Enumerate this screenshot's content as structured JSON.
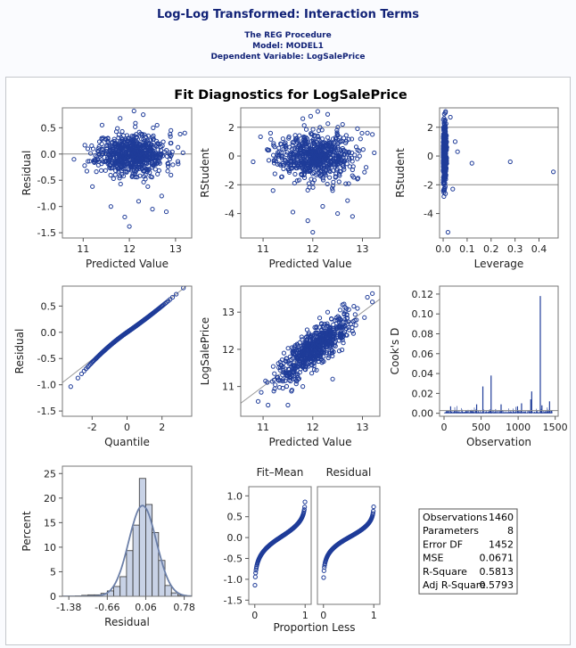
{
  "header": {
    "title": "Log-Log Transformed: Interaction Terms",
    "procedure": "The REG Procedure",
    "model": "Model: MODEL1",
    "dependent": "Dependent Variable: LogSalePrice"
  },
  "colors": {
    "marker": "#1f3c99",
    "hist_fill": "#c8d2e6",
    "curve": "#6b7fa8",
    "ref_line": "#888888"
  },
  "chart_data": [
    {
      "id": "p1",
      "type": "scatter",
      "title": "Fit Diagnostics for LogSalePrice",
      "xlabel": "Predicted Value",
      "ylabel": "Residual",
      "xlim": [
        10.55,
        13.35
      ],
      "ylim": [
        -1.6,
        0.88
      ],
      "xticks": [
        11,
        12,
        13
      ],
      "yticks": [
        -1.5,
        -1.0,
        -0.5,
        0.0,
        0.5
      ],
      "ytick_labels": [
        "-1.5",
        "-1.0",
        "-0.5",
        "0.0",
        "0.5"
      ],
      "hlines": [
        0
      ],
      "points": [
        [
          12.1,
          0.82
        ],
        [
          12.3,
          0.75
        ],
        [
          11.8,
          0.68
        ],
        [
          12.6,
          0.55
        ],
        [
          12.9,
          0.45
        ],
        [
          13.1,
          0.38
        ],
        [
          11.4,
          0.3
        ],
        [
          12.2,
          -0.9
        ],
        [
          12.5,
          -1.05
        ],
        [
          11.9,
          -1.2
        ],
        [
          12.0,
          -1.38
        ],
        [
          11.6,
          -1.0
        ],
        [
          12.7,
          -0.8
        ],
        [
          10.8,
          -0.1
        ],
        [
          11.2,
          -0.62
        ],
        [
          12.4,
          -0.62
        ],
        [
          13.2,
          0.4
        ],
        [
          11.1,
          0.1
        ],
        [
          12.9,
          -0.4
        ],
        [
          12.8,
          -1.1
        ]
      ],
      "cloud": {
        "n": 700,
        "cx": 12.05,
        "sx": 0.36,
        "cy": 0.0,
        "sy": 0.19,
        "seed": 11
      }
    },
    {
      "id": "p2",
      "type": "scatter",
      "xlabel": "Predicted Value",
      "ylabel": "RStudent",
      "xlim": [
        10.55,
        13.35
      ],
      "ylim": [
        -5.7,
        3.35
      ],
      "xticks": [
        11,
        12,
        13
      ],
      "yticks": [
        -4,
        -2,
        0,
        2
      ],
      "hlines": [
        -2,
        2
      ],
      "points": [
        [
          12.1,
          3.1
        ],
        [
          12.3,
          2.9
        ],
        [
          11.8,
          2.6
        ],
        [
          12.6,
          2.2
        ],
        [
          12.9,
          1.9
        ],
        [
          13.1,
          1.6
        ],
        [
          11.4,
          1.2
        ],
        [
          12.2,
          -3.5
        ],
        [
          12.5,
          -4.0
        ],
        [
          11.9,
          -4.5
        ],
        [
          12.0,
          -5.3
        ],
        [
          11.6,
          -3.9
        ],
        [
          12.7,
          -3.1
        ],
        [
          10.8,
          -0.4
        ],
        [
          11.2,
          -2.4
        ],
        [
          12.4,
          -2.4
        ],
        [
          13.2,
          1.5
        ],
        [
          11.1,
          0.4
        ],
        [
          12.9,
          -1.6
        ],
        [
          12.8,
          -4.2
        ]
      ],
      "cloud": {
        "n": 700,
        "cx": 12.05,
        "sx": 0.36,
        "cy": 0.0,
        "sy": 0.75,
        "seed": 17
      }
    },
    {
      "id": "p3",
      "type": "scatter",
      "xlabel": "Leverage",
      "ylabel": "RStudent",
      "xlim": [
        -0.015,
        0.48
      ],
      "ylim": [
        -5.7,
        3.35
      ],
      "xticks": [
        0.0,
        0.1,
        0.2,
        0.3,
        0.4
      ],
      "xtick_labels": [
        "0.0",
        "0.1",
        "0.2",
        "0.3",
        "0.4"
      ],
      "yticks": [
        -4,
        -2,
        0,
        2
      ],
      "hlines": [
        -2,
        2
      ],
      "points": [
        [
          0.28,
          -0.4
        ],
        [
          0.46,
          -1.1
        ],
        [
          0.12,
          -0.5
        ],
        [
          0.06,
          0.3
        ],
        [
          0.05,
          1.0
        ],
        [
          0.04,
          -2.3
        ],
        [
          0.03,
          2.7
        ],
        [
          0.02,
          -5.3
        ],
        [
          0.01,
          3.1
        ]
      ],
      "cloud": {
        "n": 600,
        "cx": 0.005,
        "sx": 0.004,
        "cy": 0.0,
        "sy": 0.95,
        "seed": 23,
        "xmin": 0.0
      }
    },
    {
      "id": "p4",
      "type": "qq",
      "xlabel": "Quantile",
      "ylabel": "Residual",
      "xlim": [
        -3.7,
        3.7
      ],
      "ylim": [
        -1.6,
        0.88
      ],
      "xticks": [
        -2,
        0,
        2
      ],
      "yticks": [
        -1.5,
        -1.0,
        -0.5,
        0.0,
        0.5
      ],
      "ytick_labels": [
        "-1.5",
        "-1.0",
        "-0.5",
        "0.0",
        "0.5"
      ],
      "line": {
        "intercept": 0.0,
        "slope": 0.259
      },
      "n": 250
    },
    {
      "id": "p5",
      "type": "scatter",
      "xlabel": "Predicted Value",
      "ylabel": "LogSalePrice",
      "xlim": [
        10.55,
        13.35
      ],
      "ylim": [
        10.2,
        13.7
      ],
      "xticks": [
        11,
        12,
        13
      ],
      "yticks": [
        11,
        12,
        13
      ],
      "diag": true,
      "points": [
        [
          10.9,
          10.6
        ],
        [
          11.1,
          10.5
        ],
        [
          13.2,
          13.5
        ],
        [
          13.1,
          13.4
        ],
        [
          12.9,
          13.1
        ],
        [
          11.5,
          10.5
        ],
        [
          12.3,
          13.0
        ],
        [
          12.6,
          13.2
        ],
        [
          11.8,
          11.0
        ],
        [
          12.4,
          11.2
        ]
      ],
      "cloud": {
        "n": 700,
        "cx": 12.05,
        "sx": 0.36,
        "cy": 0.0,
        "sy": 0.24,
        "seed": 31,
        "y_is_x_plus": true
      }
    },
    {
      "id": "p6",
      "type": "needle",
      "xlabel": "Observation",
      "ylabel": "Cook's D",
      "xlim": [
        -60,
        1540
      ],
      "ylim": [
        -0.003,
        0.128
      ],
      "xticks": [
        0,
        500,
        1000,
        1500
      ],
      "yticks": [
        0.0,
        0.02,
        0.04,
        0.06,
        0.08,
        0.1,
        0.12
      ],
      "ytick_labels": [
        "0.00",
        "0.02",
        "0.04",
        "0.06",
        "0.08",
        "0.10",
        "0.12"
      ],
      "hline": 0.0027,
      "spikes": [
        [
          1299,
          0.118
        ],
        [
          635,
          0.038
        ],
        [
          524,
          0.027
        ],
        [
          1183,
          0.022
        ],
        [
          1170,
          0.014
        ],
        [
          1424,
          0.012
        ],
        [
          89,
          0.007
        ],
        [
          770,
          0.009
        ],
        [
          1046,
          0.01
        ],
        [
          1321,
          0.008
        ],
        [
          991,
          0.007
        ],
        [
          440,
          0.009
        ]
      ]
    },
    {
      "id": "p7",
      "type": "histogram",
      "xlabel": "Residual",
      "ylabel": "Percent",
      "xlim": [
        -1.5,
        0.92
      ],
      "ylim": [
        0,
        26.5
      ],
      "xticks": [
        -1.38,
        -0.66,
        0.06,
        0.78
      ],
      "xtick_labels": [
        "-1.38",
        "-0.66",
        "0.06",
        "0.78"
      ],
      "yticks": [
        0,
        5,
        10,
        15,
        20,
        25
      ],
      "bin_start": -1.26,
      "bin_width": 0.12,
      "values": [
        0.1,
        0.2,
        0.3,
        0.3,
        0.6,
        1.1,
        2.0,
        4.0,
        9.3,
        14.5,
        24.0,
        18.7,
        13.0,
        7.3,
        2.2,
        0.7,
        0.2
      ],
      "normal": {
        "mean": 0.0,
        "sd": 0.259
      }
    },
    {
      "id": "p8",
      "type": "spread",
      "xlabel": "Proportion Less",
      "panels": [
        "Fit–Mean",
        "Residual"
      ],
      "xticks": [
        0,
        1
      ],
      "xlim": [
        -0.12,
        1.12
      ],
      "ylim": [
        -1.6,
        1.22
      ],
      "yticks": [
        -1.5,
        -1.0,
        -0.5,
        0.0,
        0.5,
        1.0
      ],
      "ytick_labels": [
        "-1.5",
        "-1.0",
        "-0.5",
        "0.0",
        "0.5",
        "1.0"
      ],
      "fit_sd": 0.3,
      "resid_sd": 0.259,
      "n": 150
    }
  ],
  "stats_table": [
    {
      "label": "Observations",
      "value": "1460"
    },
    {
      "label": "Parameters",
      "value": "8"
    },
    {
      "label": "Error DF",
      "value": "1452"
    },
    {
      "label": "MSE",
      "value": "0.0671"
    },
    {
      "label": "R-Square",
      "value": "0.5813"
    },
    {
      "label": "Adj R-Square",
      "value": "0.5793"
    }
  ]
}
